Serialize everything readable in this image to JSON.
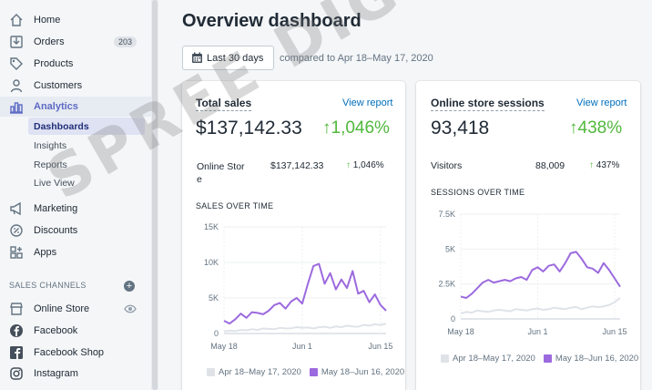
{
  "sidebar": {
    "items": [
      {
        "id": "home",
        "label": "Home",
        "icon": "home-icon"
      },
      {
        "id": "orders",
        "label": "Orders",
        "icon": "orders-icon",
        "badge": "203"
      },
      {
        "id": "products",
        "label": "Products",
        "icon": "tag-icon"
      },
      {
        "id": "customers",
        "label": "Customers",
        "icon": "person-icon"
      },
      {
        "id": "analytics",
        "label": "Analytics",
        "icon": "bar-chart-icon"
      }
    ],
    "analytics_sub": [
      "Dashboards",
      "Insights",
      "Reports",
      "Live View"
    ],
    "items2": [
      {
        "id": "marketing",
        "label": "Marketing",
        "icon": "megaphone-icon"
      },
      {
        "id": "discounts",
        "label": "Discounts",
        "icon": "discount-icon"
      },
      {
        "id": "apps",
        "label": "Apps",
        "icon": "apps-icon"
      }
    ],
    "sales_channels_heading": "SALES CHANNELS",
    "channels": [
      {
        "id": "online-store",
        "label": "Online Store",
        "icon": "store-icon"
      },
      {
        "id": "facebook",
        "label": "Facebook",
        "icon": "facebook-icon"
      },
      {
        "id": "facebook-shop",
        "label": "Facebook Shop",
        "icon": "facebook-square-icon"
      },
      {
        "id": "instagram",
        "label": "Instagram",
        "icon": "instagram-icon"
      }
    ]
  },
  "main": {
    "title": "Overview dashboard",
    "date_range": "Last 30 days",
    "compare_text": "compared to Apr 18–May 17, 2020"
  },
  "cards": {
    "sales": {
      "title": "Total sales",
      "view_link": "View report",
      "value": "$137,142.33",
      "change": "1,046%",
      "row_label": "Online Stor\ne",
      "row_value": "$137,142.33",
      "row_change": "1,046%",
      "chart_title": "SALES OVER TIME"
    },
    "sessions": {
      "title": "Online store sessions",
      "view_link": "View report",
      "value": "93,418",
      "change": "438%",
      "row_label": "Visitors",
      "row_value": "88,009",
      "row_change": "437%",
      "chart_title": "SESSIONS OVER TIME"
    }
  },
  "colors": {
    "current": "#9c6ade",
    "previous": "#dfe3e8",
    "accent": "#5c6ac4",
    "positive": "#50b83c",
    "link": "#006fbb"
  },
  "watermark": "SPREE DIGITAL",
  "chart_data": [
    {
      "type": "line",
      "title": "SALES OVER TIME",
      "x_ticks": [
        "May 18",
        "Jun 1",
        "Jun 15"
      ],
      "y_ticks": [
        "0",
        "5K",
        "10K",
        "15K"
      ],
      "ylim": [
        0,
        15000
      ],
      "series": [
        {
          "name": "Apr 18–May 17, 2020",
          "values": [
            300,
            400,
            350,
            500,
            450,
            600,
            500,
            700,
            650,
            600,
            800,
            700,
            750,
            900,
            800,
            850,
            700,
            900,
            950,
            800,
            1000,
            900,
            1100,
            1000,
            950,
            1200,
            1100,
            1300,
            1200,
            1400
          ]
        },
        {
          "name": "May 18–Jun 16, 2020",
          "values": [
            1800,
            1400,
            2000,
            2800,
            2200,
            3000,
            2900,
            2700,
            3200,
            4000,
            4300,
            3500,
            4500,
            5000,
            4200,
            7000,
            9500,
            9800,
            7000,
            8500,
            6200,
            7600,
            6400,
            8800,
            5600,
            6000,
            4400,
            5500,
            4000,
            3200
          ]
        }
      ],
      "legend": [
        "Apr 18–May 17, 2020",
        "May 18–Jun 16, 2020"
      ]
    },
    {
      "type": "line",
      "title": "SESSIONS OVER TIME",
      "x_ticks": [
        "May 18",
        "Jun 1",
        "Jun 15"
      ],
      "y_ticks": [
        "0",
        "2.5K",
        "5K",
        "7.5K"
      ],
      "ylim": [
        0,
        7500
      ],
      "series": [
        {
          "name": "Apr 18–May 17, 2020",
          "values": [
            400,
            500,
            450,
            600,
            550,
            500,
            600,
            650,
            600,
            550,
            700,
            650,
            600,
            700,
            750,
            650,
            700,
            800,
            750,
            700,
            800,
            850,
            700,
            800,
            900,
            850,
            900,
            1000,
            1200,
            1500
          ]
        },
        {
          "name": "May 18–Jun 16, 2020",
          "values": [
            1600,
            1500,
            1800,
            2200,
            2600,
            2800,
            2600,
            2700,
            2800,
            2700,
            2900,
            3000,
            2800,
            3500,
            3700,
            3400,
            3800,
            3900,
            3400,
            4000,
            4700,
            4800,
            4300,
            3700,
            3600,
            3300,
            4000,
            3500,
            2900,
            2300
          ]
        }
      ],
      "legend": [
        "Apr 18–May 17, 2020",
        "May 18–Jun 16, 2020"
      ]
    }
  ]
}
